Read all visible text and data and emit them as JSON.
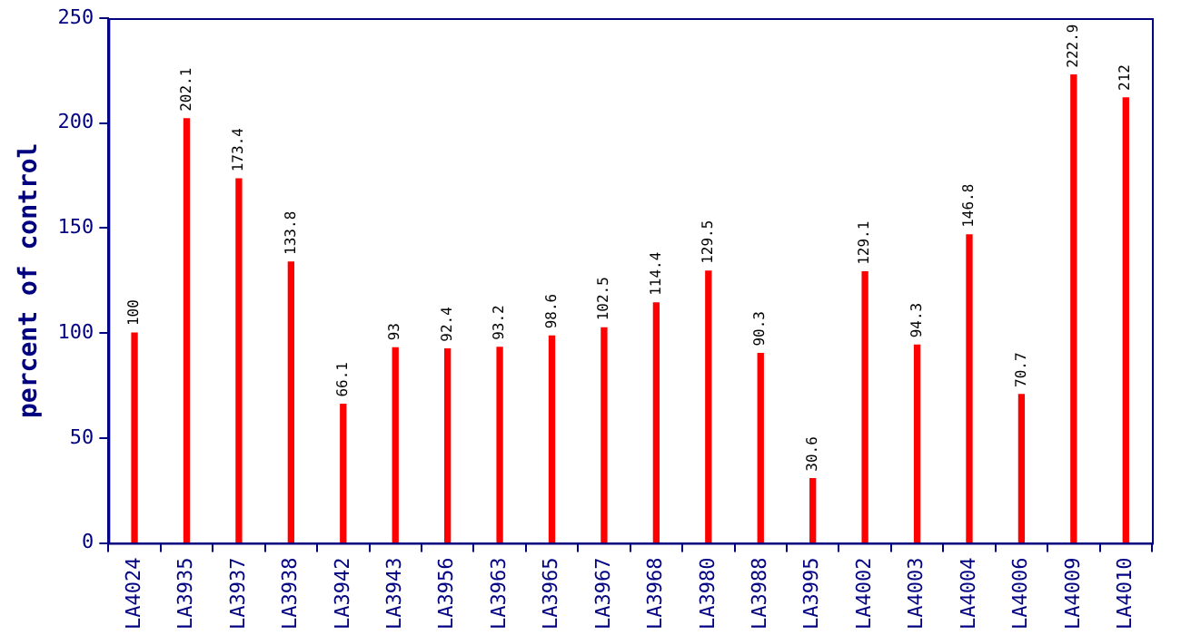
{
  "chart_data": {
    "type": "bar",
    "ylabel": "percent of control",
    "categories": [
      "LA4024",
      "LA3935",
      "LA3937",
      "LA3938",
      "LA3942",
      "LA3943",
      "LA3956",
      "LA3963",
      "LA3965",
      "LA3967",
      "LA3968",
      "LA3980",
      "LA3988",
      "LA3995",
      "LA4002",
      "LA4003",
      "LA4004",
      "LA4006",
      "LA4009",
      "LA4010"
    ],
    "values": [
      100,
      202.1,
      173.4,
      133.8,
      66.1,
      93,
      92.4,
      93.2,
      98.6,
      102.5,
      114.4,
      129.5,
      90.3,
      30.6,
      129.1,
      94.3,
      146.8,
      70.7,
      222.9,
      212
    ],
    "color": "#ff0000",
    "ylim": [
      0,
      250
    ],
    "yticks": [
      0,
      50,
      100,
      150,
      200,
      250
    ],
    "grid": false,
    "legend": false,
    "data_labels": true
  }
}
